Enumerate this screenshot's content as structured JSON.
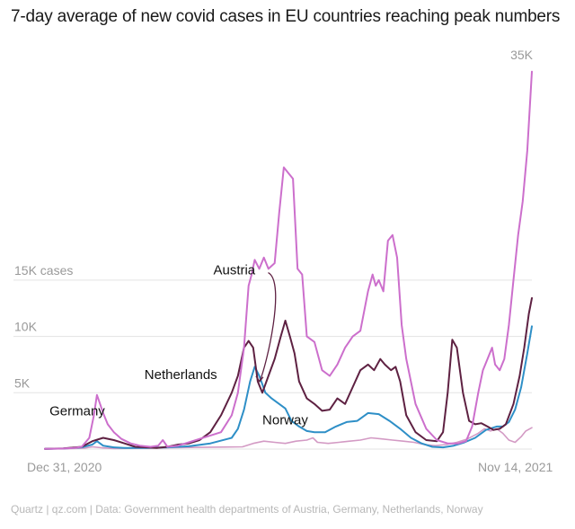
{
  "chart_data": {
    "type": "line",
    "title": "7-day average of new covid cases in EU countries reaching peak numbers",
    "source": "Quartz | qz.com | Data: Government health departments of Austria, Germany, Netherlands, Norway",
    "x_start_label": "Dec 31, 2020",
    "x_end_label": "Nov 14, 2021",
    "x_range": [
      "2020-12-31",
      "2021-11-14"
    ],
    "ylim": [
      0,
      35000
    ],
    "grid": "horizontal",
    "y_ticks": [
      {
        "value": 5000,
        "label": "5K"
      },
      {
        "value": 10000,
        "label": "10K"
      },
      {
        "value": 15000,
        "label": "15K cases"
      },
      {
        "value": 35000,
        "label": "35K"
      }
    ],
    "colors": {
      "Germany": "#cc6fcc",
      "Austria": "#5e2142",
      "Netherlands": "#2e8fc7",
      "Norway": "#d39ac4",
      "arrow": "#5e2142"
    },
    "series": [
      {
        "name": "Germany",
        "points": [
          [
            "2020-12-31",
            20
          ],
          [
            "2021-01-05",
            30
          ],
          [
            "2021-01-12",
            50
          ],
          [
            "2021-01-19",
            100
          ],
          [
            "2021-01-24",
            200
          ],
          [
            "2021-01-29",
            1000
          ],
          [
            "2021-02-01",
            3000
          ],
          [
            "2021-02-03",
            4800
          ],
          [
            "2021-02-05",
            4000
          ],
          [
            "2021-02-07",
            3200
          ],
          [
            "2021-02-10",
            2200
          ],
          [
            "2021-02-14",
            1500
          ],
          [
            "2021-02-19",
            900
          ],
          [
            "2021-02-25",
            500
          ],
          [
            "2021-03-03",
            300
          ],
          [
            "2021-03-10",
            200
          ],
          [
            "2021-03-15",
            300
          ],
          [
            "2021-03-18",
            800
          ],
          [
            "2021-03-21",
            200
          ],
          [
            "2021-03-28",
            300
          ],
          [
            "2021-04-04",
            600
          ],
          [
            "2021-04-11",
            900
          ],
          [
            "2021-04-18",
            1200
          ],
          [
            "2021-04-25",
            1500
          ],
          [
            "2021-05-02",
            3000
          ],
          [
            "2021-05-06",
            5000
          ],
          [
            "2021-05-10",
            9000
          ],
          [
            "2021-05-13",
            14500
          ],
          [
            "2021-05-15",
            15500
          ],
          [
            "2021-05-17",
            16800
          ],
          [
            "2021-05-20",
            16000
          ],
          [
            "2021-05-23",
            17000
          ],
          [
            "2021-05-26",
            16000
          ],
          [
            "2021-05-30",
            16500
          ],
          [
            "2021-06-02",
            21000
          ],
          [
            "2021-06-05",
            25000
          ],
          [
            "2021-06-08",
            24500
          ],
          [
            "2021-06-11",
            24000
          ],
          [
            "2021-06-14",
            16000
          ],
          [
            "2021-06-17",
            15500
          ],
          [
            "2021-06-20",
            10000
          ],
          [
            "2021-06-25",
            9500
          ],
          [
            "2021-06-30",
            7000
          ],
          [
            "2021-07-05",
            6500
          ],
          [
            "2021-07-10",
            7500
          ],
          [
            "2021-07-15",
            9000
          ],
          [
            "2021-07-20",
            10000
          ],
          [
            "2021-07-25",
            10500
          ],
          [
            "2021-07-30",
            14000
          ],
          [
            "2021-08-02",
            15500
          ],
          [
            "2021-08-04",
            14500
          ],
          [
            "2021-08-06",
            15000
          ],
          [
            "2021-08-09",
            14000
          ],
          [
            "2021-08-12",
            18500
          ],
          [
            "2021-08-15",
            19000
          ],
          [
            "2021-08-18",
            17000
          ],
          [
            "2021-08-21",
            11000
          ],
          [
            "2021-08-24",
            8000
          ],
          [
            "2021-08-30",
            4000
          ],
          [
            "2021-09-06",
            1800
          ],
          [
            "2021-09-13",
            800
          ],
          [
            "2021-09-20",
            500
          ],
          [
            "2021-09-27",
            500
          ],
          [
            "2021-10-02",
            700
          ],
          [
            "2021-10-06",
            2000
          ],
          [
            "2021-10-10",
            5000
          ],
          [
            "2021-10-13",
            7000
          ],
          [
            "2021-10-16",
            8000
          ],
          [
            "2021-10-19",
            9000
          ],
          [
            "2021-10-21",
            7500
          ],
          [
            "2021-10-24",
            7000
          ],
          [
            "2021-10-27",
            8000
          ],
          [
            "2021-10-30",
            11000
          ],
          [
            "2021-11-02",
            15000
          ],
          [
            "2021-11-05",
            19000
          ],
          [
            "2021-11-08",
            22000
          ],
          [
            "2021-11-11",
            26500
          ],
          [
            "2021-11-14",
            33500
          ]
        ]
      },
      {
        "name": "Austria",
        "points": [
          [
            "2020-12-31",
            20
          ],
          [
            "2021-01-12",
            60
          ],
          [
            "2021-01-24",
            200
          ],
          [
            "2021-01-31",
            700
          ],
          [
            "2021-02-07",
            1000
          ],
          [
            "2021-02-14",
            800
          ],
          [
            "2021-02-21",
            500
          ],
          [
            "2021-02-28",
            200
          ],
          [
            "2021-03-07",
            150
          ],
          [
            "2021-03-14",
            100
          ],
          [
            "2021-03-21",
            200
          ],
          [
            "2021-03-28",
            400
          ],
          [
            "2021-04-04",
            500
          ],
          [
            "2021-04-11",
            800
          ],
          [
            "2021-04-18",
            1500
          ],
          [
            "2021-04-25",
            3000
          ],
          [
            "2021-05-02",
            5000
          ],
          [
            "2021-05-06",
            6500
          ],
          [
            "2021-05-10",
            9000
          ],
          [
            "2021-05-13",
            9600
          ],
          [
            "2021-05-16",
            9000
          ],
          [
            "2021-05-19",
            6000
          ],
          [
            "2021-05-22",
            5000
          ],
          [
            "2021-05-26",
            6500
          ],
          [
            "2021-05-30",
            8000
          ],
          [
            "2021-06-03",
            10000
          ],
          [
            "2021-06-06",
            11400
          ],
          [
            "2021-06-09",
            10000
          ],
          [
            "2021-06-12",
            8500
          ],
          [
            "2021-06-15",
            6000
          ],
          [
            "2021-06-20",
            4500
          ],
          [
            "2021-06-25",
            4000
          ],
          [
            "2021-06-30",
            3400
          ],
          [
            "2021-07-05",
            3500
          ],
          [
            "2021-07-10",
            4500
          ],
          [
            "2021-07-15",
            4000
          ],
          [
            "2021-07-20",
            5500
          ],
          [
            "2021-07-25",
            7000
          ],
          [
            "2021-07-30",
            7500
          ],
          [
            "2021-08-03",
            7000
          ],
          [
            "2021-08-07",
            8000
          ],
          [
            "2021-08-10",
            7500
          ],
          [
            "2021-08-14",
            7000
          ],
          [
            "2021-08-17",
            7300
          ],
          [
            "2021-08-20",
            6000
          ],
          [
            "2021-08-24",
            3000
          ],
          [
            "2021-08-30",
            1500
          ],
          [
            "2021-09-06",
            800
          ],
          [
            "2021-09-13",
            700
          ],
          [
            "2021-09-17",
            1500
          ],
          [
            "2021-09-20",
            5000
          ],
          [
            "2021-09-23",
            9700
          ],
          [
            "2021-09-26",
            9000
          ],
          [
            "2021-09-30",
            5000
          ],
          [
            "2021-10-04",
            2500
          ],
          [
            "2021-10-08",
            2200
          ],
          [
            "2021-10-12",
            2300
          ],
          [
            "2021-10-16",
            2000
          ],
          [
            "2021-10-20",
            1700
          ],
          [
            "2021-10-24",
            1800
          ],
          [
            "2021-10-28",
            2200
          ],
          [
            "2021-11-02",
            4000
          ],
          [
            "2021-11-06",
            6500
          ],
          [
            "2021-11-09",
            9000
          ],
          [
            "2021-11-12",
            12000
          ],
          [
            "2021-11-14",
            13400
          ]
        ]
      },
      {
        "name": "Netherlands",
        "points": [
          [
            "2020-12-31",
            20
          ],
          [
            "2021-01-12",
            50
          ],
          [
            "2021-01-24",
            150
          ],
          [
            "2021-01-31",
            400
          ],
          [
            "2021-02-03",
            700
          ],
          [
            "2021-02-07",
            300
          ],
          [
            "2021-02-14",
            150
          ],
          [
            "2021-02-21",
            100
          ],
          [
            "2021-03-07",
            100
          ],
          [
            "2021-03-21",
            150
          ],
          [
            "2021-04-04",
            250
          ],
          [
            "2021-04-18",
            500
          ],
          [
            "2021-05-02",
            1000
          ],
          [
            "2021-05-06",
            1800
          ],
          [
            "2021-05-10",
            3500
          ],
          [
            "2021-05-14",
            6000
          ],
          [
            "2021-05-17",
            7300
          ],
          [
            "2021-05-20",
            6500
          ],
          [
            "2021-05-24",
            5000
          ],
          [
            "2021-05-28",
            4500
          ],
          [
            "2021-06-02",
            4000
          ],
          [
            "2021-06-06",
            3600
          ],
          [
            "2021-06-10",
            2500
          ],
          [
            "2021-06-15",
            2000
          ],
          [
            "2021-06-20",
            1600
          ],
          [
            "2021-06-25",
            1500
          ],
          [
            "2021-07-02",
            1500
          ],
          [
            "2021-07-09",
            2000
          ],
          [
            "2021-07-16",
            2400
          ],
          [
            "2021-07-23",
            2500
          ],
          [
            "2021-07-30",
            3200
          ],
          [
            "2021-08-06",
            3100
          ],
          [
            "2021-08-13",
            2500
          ],
          [
            "2021-08-20",
            1800
          ],
          [
            "2021-08-27",
            1000
          ],
          [
            "2021-09-03",
            500
          ],
          [
            "2021-09-10",
            200
          ],
          [
            "2021-09-17",
            150
          ],
          [
            "2021-09-24",
            300
          ],
          [
            "2021-10-01",
            600
          ],
          [
            "2021-10-08",
            1000
          ],
          [
            "2021-10-15",
            1700
          ],
          [
            "2021-10-22",
            2000
          ],
          [
            "2021-10-26",
            2000
          ],
          [
            "2021-10-30",
            2400
          ],
          [
            "2021-11-03",
            3500
          ],
          [
            "2021-11-07",
            5500
          ],
          [
            "2021-11-11",
            8500
          ],
          [
            "2021-11-14",
            10900
          ]
        ]
      },
      {
        "name": "Norway",
        "points": [
          [
            "2020-12-31",
            10
          ],
          [
            "2021-01-12",
            20
          ],
          [
            "2021-01-26",
            80
          ],
          [
            "2021-01-31",
            200
          ],
          [
            "2021-02-07",
            100
          ],
          [
            "2021-02-14",
            50
          ],
          [
            "2021-03-14",
            100
          ],
          [
            "2021-04-11",
            150
          ],
          [
            "2021-05-09",
            200
          ],
          [
            "2021-05-16",
            500
          ],
          [
            "2021-05-23",
            700
          ],
          [
            "2021-05-30",
            600
          ],
          [
            "2021-06-06",
            500
          ],
          [
            "2021-06-13",
            700
          ],
          [
            "2021-06-20",
            800
          ],
          [
            "2021-06-24",
            1000
          ],
          [
            "2021-06-27",
            600
          ],
          [
            "2021-07-04",
            500
          ],
          [
            "2021-07-11",
            600
          ],
          [
            "2021-07-18",
            700
          ],
          [
            "2021-07-25",
            800
          ],
          [
            "2021-08-01",
            1000
          ],
          [
            "2021-08-08",
            900
          ],
          [
            "2021-08-15",
            800
          ],
          [
            "2021-08-22",
            700
          ],
          [
            "2021-08-29",
            600
          ],
          [
            "2021-09-05",
            400
          ],
          [
            "2021-09-12",
            300
          ],
          [
            "2021-09-19",
            400
          ],
          [
            "2021-09-26",
            600
          ],
          [
            "2021-10-03",
            900
          ],
          [
            "2021-10-10",
            1400
          ],
          [
            "2021-10-14",
            1800
          ],
          [
            "2021-10-18",
            1600
          ],
          [
            "2021-10-22",
            1800
          ],
          [
            "2021-10-26",
            1400
          ],
          [
            "2021-10-30",
            800
          ],
          [
            "2021-11-03",
            600
          ],
          [
            "2021-11-07",
            1100
          ],
          [
            "2021-11-10",
            1600
          ],
          [
            "2021-11-14",
            1900
          ]
        ]
      }
    ],
    "annotations": [
      {
        "text": "Germany",
        "series": "Germany"
      },
      {
        "text": "Austria",
        "series": "Austria",
        "arrow": true
      },
      {
        "text": "Netherlands",
        "series": "Netherlands"
      },
      {
        "text": "Norway",
        "series": "Norway"
      }
    ]
  }
}
